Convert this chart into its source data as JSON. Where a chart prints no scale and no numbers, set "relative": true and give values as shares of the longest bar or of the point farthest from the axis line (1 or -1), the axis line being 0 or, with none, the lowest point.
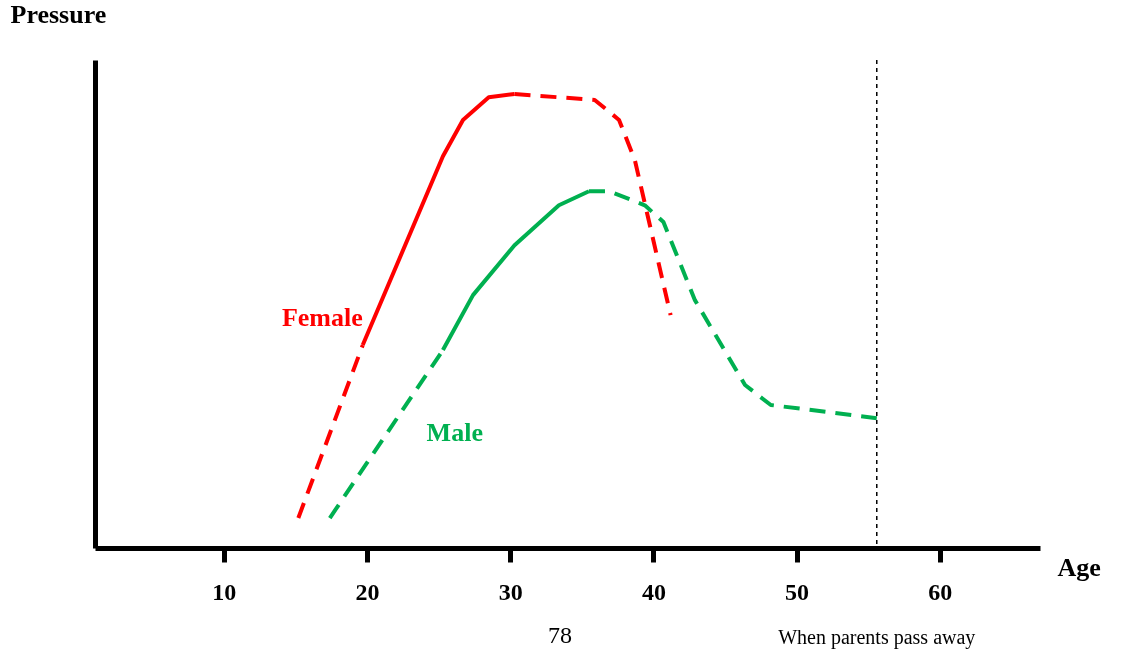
{
  "chart_data": {
    "type": "line",
    "relative": true,
    "xlabel": "Age",
    "ylabel": "Pressure",
    "xlim": [
      1,
      67
    ],
    "xticks": [
      10,
      20,
      30,
      40,
      50,
      60
    ],
    "grid": false,
    "marker": "none",
    "series": [
      {
        "color": "#ff0000",
        "line_style": "dashed",
        "x": [
          15.2,
          19.7
        ],
        "values": [
          0.066,
          0.447
        ]
      },
      {
        "name": "Female",
        "color": "#ff0000",
        "line_style": "solid",
        "x": [
          19.7,
          25.3,
          26.7,
          28.5,
          30.3
        ],
        "values": [
          0.447,
          0.863,
          0.943,
          0.993,
          1
        ]
      },
      {
        "color": "#ff0000",
        "line_style": "dashed",
        "x": [
          30.3,
          35.9,
          37.6,
          38.7,
          41.2
        ],
        "values": [
          1,
          0.987,
          0.943,
          0.855,
          0.513
        ]
      },
      {
        "color": "#00b050",
        "line_style": "dashed",
        "x": [
          17.4,
          25.3
        ],
        "values": [
          0.066,
          0.436
        ]
      },
      {
        "name": "Male",
        "color": "#00b050",
        "line_style": "solid",
        "x": [
          25.3,
          27.4,
          30.3,
          33.4,
          35.5
        ],
        "values": [
          0.436,
          0.557,
          0.667,
          0.755,
          0.786
        ]
      },
      {
        "color": "#00b050",
        "line_style": "dashed",
        "x": [
          35.5,
          36.9,
          39.4,
          40.7,
          42.9,
          46.4,
          48.2,
          55.6
        ],
        "values": [
          0.786,
          0.786,
          0.755,
          0.718,
          0.546,
          0.359,
          0.315,
          0.286
        ]
      }
    ],
    "ref_lines": [
      {
        "axis": "x",
        "value": 55.6,
        "label": "When parents pass away",
        "line_style": "dotted"
      }
    ],
    "annotations": [
      "78"
    ]
  }
}
